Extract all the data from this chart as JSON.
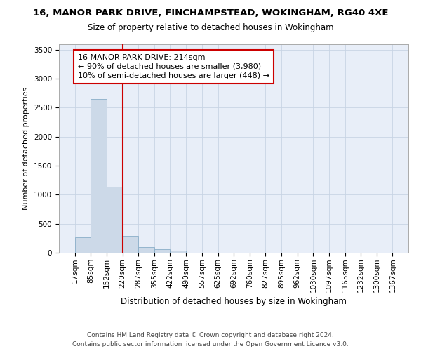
{
  "title1": "16, MANOR PARK DRIVE, FINCHAMPSTEAD, WOKINGHAM, RG40 4XE",
  "title2": "Size of property relative to detached houses in Wokingham",
  "xlabel": "Distribution of detached houses by size in Wokingham",
  "ylabel": "Number of detached properties",
  "bar_color": "#ccd9e8",
  "bar_edge_color": "#8aaec8",
  "grid_color": "#c8d4e4",
  "background_color": "#e8eef8",
  "annotation_text": "16 MANOR PARK DRIVE: 214sqm\n← 90% of detached houses are smaller (3,980)\n10% of semi-detached houses are larger (448) →",
  "vline_x": 220,
  "vline_color": "#cc0000",
  "footer": "Contains HM Land Registry data © Crown copyright and database right 2024.\nContains public sector information licensed under the Open Government Licence v3.0.",
  "bin_edges": [
    17,
    85,
    152,
    220,
    287,
    355,
    422,
    490,
    557,
    625,
    692,
    760,
    827,
    895,
    962,
    1030,
    1097,
    1165,
    1232,
    1300,
    1367
  ],
  "bar_heights": [
    270,
    2650,
    1140,
    290,
    95,
    55,
    35,
    0,
    0,
    0,
    0,
    0,
    0,
    0,
    0,
    0,
    0,
    0,
    0,
    0
  ],
  "ylim": [
    0,
    3600
  ],
  "yticks": [
    0,
    500,
    1000,
    1500,
    2000,
    2500,
    3000,
    3500
  ],
  "title1_fontsize": 9.5,
  "title2_fontsize": 8.5,
  "xlabel_fontsize": 8.5,
  "ylabel_fontsize": 8,
  "tick_fontsize": 7.5,
  "footer_fontsize": 6.5,
  "ann_fontsize": 8
}
